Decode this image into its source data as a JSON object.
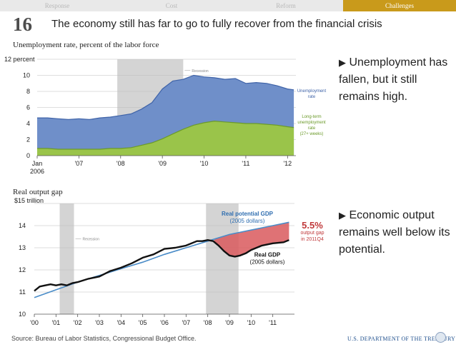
{
  "nav": {
    "tabs": [
      "Response",
      "Cost",
      "Reform",
      "Challenges"
    ],
    "active": "Challenges"
  },
  "slide": {
    "number": "16",
    "title": "The economy still has far to go to fully recover from the financial crisis"
  },
  "bullets": {
    "unemployment": "Unemployment has fallen, but it still remains high.",
    "output": "Economic output remains well below its potential."
  },
  "footer": {
    "source": "Source: Bureau of Labor Statistics, Congressional Budget Office.",
    "agency": "U.S. DEPARTMENT OF THE TREASURY"
  },
  "colors": {
    "unemployment": "#6f8fc9",
    "long_term": "#9ac44a",
    "potential_gdp": "#4a8cc8",
    "real_gdp": "#111111",
    "gap": "#d9595d",
    "recession": "#d4d4d4",
    "gap_label": "#c0393b",
    "potential_label": "#2f6eb0",
    "accent": "#c99a1b"
  },
  "chart_data": [
    {
      "type": "area",
      "title": "Unemployment rate, percent of the labor force",
      "y_unit_label": "12 percent",
      "ylim": [
        0,
        12
      ],
      "y_ticks": [
        0,
        2,
        4,
        6,
        8,
        10,
        12
      ],
      "y_tick_labels": [
        "0",
        "2",
        "4",
        "6",
        "8",
        "10",
        "12 percent"
      ],
      "xlim": [
        2006.0,
        2012.2
      ],
      "x_ticks": [
        2006.0,
        2007.0,
        2008.0,
        2009.0,
        2010.0,
        2011.0,
        2012.0
      ],
      "x_tick_labels": [
        "Jan\n2006",
        "'07",
        "'08",
        "'09",
        "'10",
        "'11",
        "'12"
      ],
      "recession": {
        "label": "Recession",
        "start": 2007.92,
        "end": 2009.5
      },
      "series": [
        {
          "name": "Unemployment rate",
          "label_lines": [
            "Unemployment",
            "rate"
          ],
          "x": [
            2006.0,
            2006.25,
            2006.5,
            2006.75,
            2007.0,
            2007.25,
            2007.5,
            2007.75,
            2008.0,
            2008.25,
            2008.5,
            2008.75,
            2009.0,
            2009.25,
            2009.5,
            2009.75,
            2010.0,
            2010.25,
            2010.5,
            2010.75,
            2011.0,
            2011.25,
            2011.5,
            2011.75,
            2012.0,
            2012.15
          ],
          "values": [
            4.7,
            4.7,
            4.6,
            4.5,
            4.6,
            4.5,
            4.7,
            4.8,
            5.0,
            5.2,
            5.8,
            6.6,
            8.3,
            9.3,
            9.5,
            10.0,
            9.8,
            9.7,
            9.5,
            9.6,
            9.0,
            9.1,
            9.0,
            8.7,
            8.3,
            8.2
          ]
        },
        {
          "name": "Long-term unemployment rate",
          "label_lines": [
            "Long-term",
            "unemployment",
            "rate",
            "(27+ weeks)"
          ],
          "x": [
            2006.0,
            2006.25,
            2006.5,
            2006.75,
            2007.0,
            2007.25,
            2007.5,
            2007.75,
            2008.0,
            2008.25,
            2008.5,
            2008.75,
            2009.0,
            2009.25,
            2009.5,
            2009.75,
            2010.0,
            2010.25,
            2010.5,
            2010.75,
            2011.0,
            2011.25,
            2011.5,
            2011.75,
            2012.0,
            2012.15
          ],
          "values": [
            0.9,
            0.9,
            0.8,
            0.8,
            0.8,
            0.8,
            0.8,
            0.9,
            0.9,
            1.0,
            1.3,
            1.6,
            2.1,
            2.7,
            3.3,
            3.8,
            4.1,
            4.3,
            4.2,
            4.1,
            4.0,
            4.0,
            3.9,
            3.8,
            3.6,
            3.5
          ]
        }
      ]
    },
    {
      "type": "line",
      "title": "Real output gap",
      "y_unit_label": "$15 trillion",
      "ylim": [
        10,
        15
      ],
      "y_ticks": [
        10,
        11,
        12,
        13,
        14,
        15
      ],
      "y_tick_labels": [
        "10",
        "11",
        "12",
        "13",
        "14",
        "$15 trillion"
      ],
      "xlim": [
        2000.0,
        2012.0
      ],
      "x_ticks": [
        2000,
        2001,
        2002,
        2003,
        2004,
        2005,
        2006,
        2007,
        2008,
        2009,
        2010,
        2011
      ],
      "x_tick_labels": [
        "'00",
        "'01",
        "'02",
        "'03",
        "'04",
        "'05",
        "'06",
        "'07",
        "'08",
        "'09",
        "'10",
        "'11"
      ],
      "recessions": [
        {
          "label": "Recession",
          "start": 2001.17,
          "end": 2001.83
        },
        {
          "label": "",
          "start": 2007.92,
          "end": 2009.42
        }
      ],
      "gap_annotation": {
        "value": "5.5%",
        "lines": [
          "output gap",
          "in 2011Q4"
        ]
      },
      "series": [
        {
          "name": "Real potential GDP",
          "label_lines": [
            "Real potential GDP",
            "(2005 dollars)"
          ],
          "x": [
            2000.0,
            2001.0,
            2002.0,
            2003.0,
            2004.0,
            2005.0,
            2006.0,
            2007.0,
            2008.0,
            2009.0,
            2010.0,
            2011.0,
            2011.75
          ],
          "values": [
            10.75,
            11.1,
            11.45,
            11.75,
            12.05,
            12.35,
            12.7,
            13.0,
            13.3,
            13.6,
            13.8,
            14.0,
            14.15
          ]
        },
        {
          "name": "Real GDP",
          "label_lines": [
            "Real GDP",
            "(2005 dollars)"
          ],
          "x": [
            2000.0,
            2000.25,
            2000.5,
            2000.75,
            2001.0,
            2001.25,
            2001.5,
            2001.75,
            2002.0,
            2002.5,
            2003.0,
            2003.5,
            2004.0,
            2004.5,
            2005.0,
            2005.5,
            2006.0,
            2006.5,
            2007.0,
            2007.5,
            2007.75,
            2008.0,
            2008.25,
            2008.5,
            2008.75,
            2009.0,
            2009.25,
            2009.5,
            2009.75,
            2010.0,
            2010.5,
            2011.0,
            2011.5,
            2011.75
          ],
          "values": [
            11.05,
            11.25,
            11.3,
            11.35,
            11.3,
            11.35,
            11.3,
            11.4,
            11.45,
            11.6,
            11.7,
            11.95,
            12.1,
            12.3,
            12.55,
            12.7,
            12.95,
            13.0,
            13.1,
            13.3,
            13.3,
            13.35,
            13.3,
            13.1,
            12.85,
            12.65,
            12.6,
            12.65,
            12.75,
            12.9,
            13.1,
            13.2,
            13.25,
            13.35
          ]
        }
      ]
    }
  ]
}
